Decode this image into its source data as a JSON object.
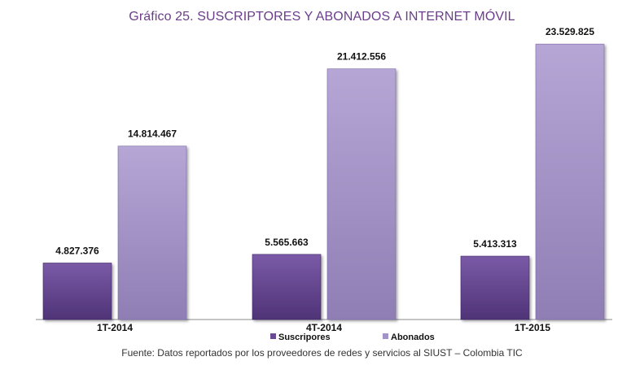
{
  "chart_data": {
    "type": "bar",
    "title": "Gráfico 25. SUSCRIPTORES Y ABONADOS A INTERNET MÓVIL",
    "categories": [
      "1T-2014",
      "4T-2014",
      "1T-2015"
    ],
    "series": [
      {
        "name": "Suscripores",
        "values": [
          4827376,
          5565663,
          5413313
        ],
        "labels": [
          "4.827.376",
          "5.565.663",
          "5.413.313"
        ],
        "color": "#6a4a94"
      },
      {
        "name": "Abonados",
        "values": [
          14814467,
          21412556,
          23529825
        ],
        "labels": [
          "14.814.467",
          "21.412.556",
          "23.529.825"
        ],
        "color": "#a493c6"
      }
    ],
    "ylim": [
      0,
      25000000
    ],
    "grid": false,
    "legend": "bottom-center",
    "source": "Fuente: Datos reportados por los proveedores de redes y servicios al SIUST – Colombia TIC"
  }
}
